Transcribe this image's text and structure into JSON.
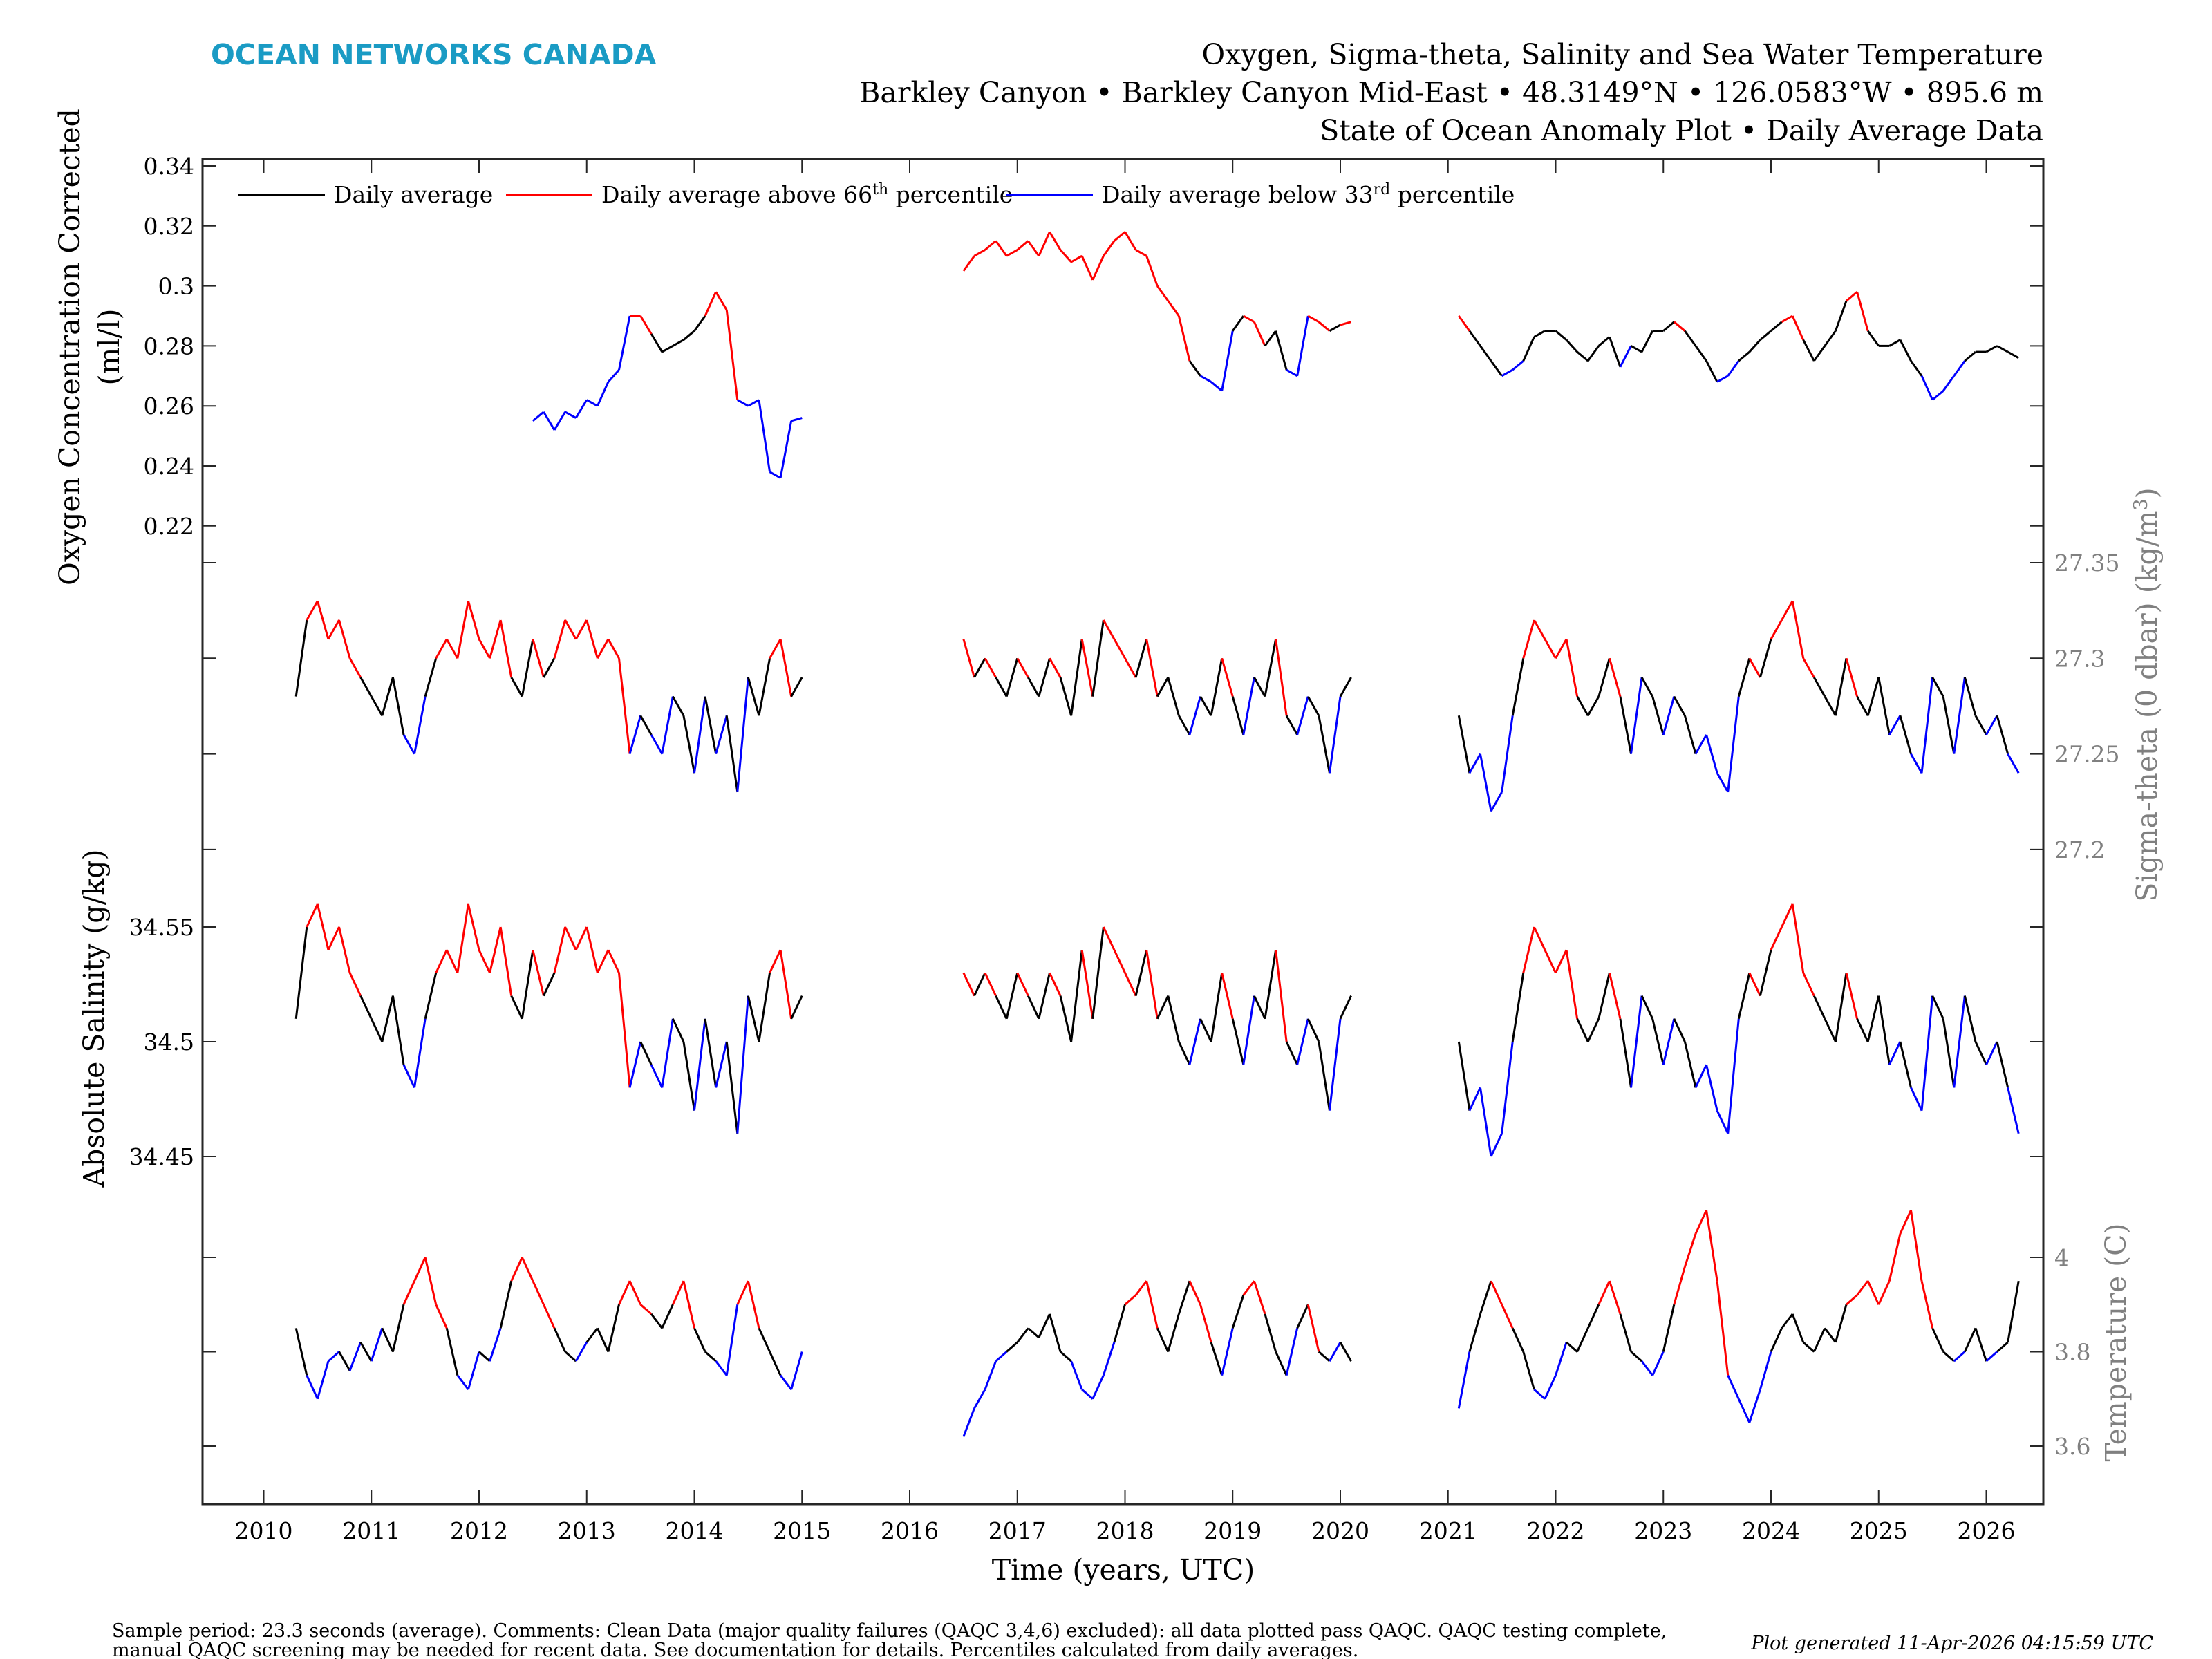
{
  "header": {
    "logo": "OCEAN NETWORKS CANADA",
    "title": "Oxygen, Sigma-theta, Salinity and Sea Water Temperature",
    "subtitle": "Barkley Canyon • Barkley Canyon Mid-East • 48.3149°N • 126.0583°W • 895.6 m",
    "subtitle2": "State of Ocean Anomaly Plot • Daily Average Data"
  },
  "footer": {
    "line1": "Sample period: 23.3 seconds (average). Comments: Clean Data (major quality failures (QAQC 3,4,6) excluded): all data plotted pass QAQC. QAQC testing complete,",
    "line2": "manual QAQC screening may be needed for recent data. See documentation for details. Percentiles calculated from daily averages.",
    "generated": "Plot generated 11-Apr-2026 04:15:59 UTC"
  },
  "colors": {
    "logo": "#1a9bc4",
    "normal": "#000000",
    "above": "#ff0000",
    "below": "#0000ff",
    "right_axis": "#808080"
  },
  "chart_data": {
    "type": "line",
    "xlabel": "Time (years, UTC)",
    "x_ticks": [
      2010,
      2011,
      2012,
      2013,
      2014,
      2015,
      2016,
      2017,
      2018,
      2019,
      2020,
      2021,
      2022,
      2023,
      2024,
      2025,
      2026
    ],
    "xlim": [
      2009.45,
      2026.55
    ],
    "legend": {
      "placement": "top-left",
      "entries": [
        {
          "text": "Daily average",
          "sup": "",
          "after": "",
          "color": "#000000"
        },
        {
          "text": "Daily average above 66",
          "sup": "th",
          "after": " percentile",
          "color": "#ff0000"
        },
        {
          "text": "Daily average below 33",
          "sup": "rd",
          "after": " percentile",
          "color": "#0000ff"
        }
      ]
    },
    "panels": [
      {
        "id": "oxygen",
        "side": "left",
        "ylabel_line1": "Oxygen Concentration Corrected",
        "ylabel_line2": "(ml/l)",
        "y_ticks": [
          "0.22",
          "0.24",
          "0.26",
          "0.28",
          "0.3",
          "0.32",
          "0.34"
        ],
        "segments": [
          {
            "x_start": 2012.5,
            "x_step": 0.1,
            "values": [
              0.255,
              0.258,
              0.252,
              0.258,
              0.256,
              0.262,
              0.26,
              0.268,
              0.272,
              0.29,
              0.29,
              0.284,
              0.278,
              0.28,
              0.282,
              0.285,
              0.29,
              0.298,
              0.292,
              0.262,
              0.26,
              0.262,
              0.238,
              0.236,
              0.255,
              0.256
            ]
          },
          {
            "x_start": 2016.5,
            "x_step": 0.1,
            "values": [
              0.305,
              0.31,
              0.312,
              0.315,
              0.31,
              0.312,
              0.315,
              0.31,
              0.318,
              0.312,
              0.308,
              0.31,
              0.302,
              0.31,
              0.315,
              0.318,
              0.312,
              0.31,
              0.3,
              0.295,
              0.29,
              0.275,
              0.27,
              0.268,
              0.265,
              0.285,
              0.29,
              0.288,
              0.28,
              0.285,
              0.272,
              0.27,
              0.29,
              0.288,
              0.285,
              0.287,
              0.288
            ]
          },
          {
            "x_start": 2021.1,
            "x_step": 0.1,
            "values": [
              0.29,
              0.285,
              0.28,
              0.275,
              0.27,
              0.272,
              0.275,
              0.283,
              0.285,
              0.285,
              0.282,
              0.278,
              0.275,
              0.28,
              0.283,
              0.273,
              0.28,
              0.278,
              0.285,
              0.285,
              0.288,
              0.285,
              0.28,
              0.275,
              0.268,
              0.27,
              0.275,
              0.278,
              0.282,
              0.285,
              0.288,
              0.29,
              0.282,
              0.275,
              0.28,
              0.285,
              0.295,
              0.298,
              0.285,
              0.28,
              0.28,
              0.282,
              0.275,
              0.27,
              0.262,
              0.265,
              0.27,
              0.275,
              0.278,
              0.278,
              0.28,
              0.278,
              0.276
            ]
          }
        ]
      },
      {
        "id": "sigma-theta",
        "side": "right",
        "ylabel": "Sigma-theta (0 dbar) (kg/m",
        "ylabel_sup": "3",
        "ylabel_end": ")",
        "y_ticks": [
          "27.2",
          "27.25",
          "27.3",
          "27.35"
        ],
        "segments": [
          {
            "x_start": 2010.3,
            "x_step": 0.1,
            "values": [
              27.28,
              27.32,
              27.33,
              27.31,
              27.32,
              27.3,
              27.29,
              27.28,
              27.27,
              27.29,
              27.26,
              27.25,
              27.28,
              27.3,
              27.31,
              27.3,
              27.33,
              27.31,
              27.3,
              27.32,
              27.29,
              27.28,
              27.31,
              27.29,
              27.3,
              27.32,
              27.31,
              27.32,
              27.3,
              27.31,
              27.3,
              27.25,
              27.27,
              27.26,
              27.25,
              27.28,
              27.27,
              27.24,
              27.28,
              27.25,
              27.27,
              27.23,
              27.29,
              27.27,
              27.3,
              27.31,
              27.28,
              27.29
            ]
          },
          {
            "x_start": 2016.5,
            "x_step": 0.1,
            "values": [
              27.31,
              27.29,
              27.3,
              27.29,
              27.28,
              27.3,
              27.29,
              27.28,
              27.3,
              27.29,
              27.27,
              27.31,
              27.28,
              27.32,
              27.31,
              27.3,
              27.29,
              27.31,
              27.28,
              27.29,
              27.27,
              27.26,
              27.28,
              27.27,
              27.3,
              27.28,
              27.26,
              27.29,
              27.28,
              27.31,
              27.27,
              27.26,
              27.28,
              27.27,
              27.24,
              27.28,
              27.29
            ]
          },
          {
            "x_start": 2021.1,
            "x_step": 0.1,
            "values": [
              27.27,
              27.24,
              27.25,
              27.22,
              27.23,
              27.27,
              27.3,
              27.32,
              27.31,
              27.3,
              27.31,
              27.28,
              27.27,
              27.28,
              27.3,
              27.28,
              27.25,
              27.29,
              27.28,
              27.26,
              27.28,
              27.27,
              27.25,
              27.26,
              27.24,
              27.23,
              27.28,
              27.3,
              27.29,
              27.31,
              27.32,
              27.33,
              27.3,
              27.29,
              27.28,
              27.27,
              27.3,
              27.28,
              27.27,
              27.29,
              27.26,
              27.27,
              27.25,
              27.24,
              27.29,
              27.28,
              27.25,
              27.29,
              27.27,
              27.26,
              27.27,
              27.25,
              27.24
            ]
          }
        ]
      },
      {
        "id": "salinity",
        "side": "left",
        "ylabel": "Absolute Salinity (g/kg)",
        "y_ticks": [
          "34.45",
          "34.5",
          "34.55"
        ],
        "segments": [
          {
            "x_start": 2010.3,
            "x_step": 0.1,
            "values": [
              34.51,
              34.55,
              34.56,
              34.54,
              34.55,
              34.53,
              34.52,
              34.51,
              34.5,
              34.52,
              34.49,
              34.48,
              34.51,
              34.53,
              34.54,
              34.53,
              34.56,
              34.54,
              34.53,
              34.55,
              34.52,
              34.51,
              34.54,
              34.52,
              34.53,
              34.55,
              34.54,
              34.55,
              34.53,
              34.54,
              34.53,
              34.48,
              34.5,
              34.49,
              34.48,
              34.51,
              34.5,
              34.47,
              34.51,
              34.48,
              34.5,
              34.46,
              34.52,
              34.5,
              34.53,
              34.54,
              34.51,
              34.52
            ]
          },
          {
            "x_start": 2016.5,
            "x_step": 0.1,
            "values": [
              34.53,
              34.52,
              34.53,
              34.52,
              34.51,
              34.53,
              34.52,
              34.51,
              34.53,
              34.52,
              34.5,
              34.54,
              34.51,
              34.55,
              34.54,
              34.53,
              34.52,
              34.54,
              34.51,
              34.52,
              34.5,
              34.49,
              34.51,
              34.5,
              34.53,
              34.51,
              34.49,
              34.52,
              34.51,
              34.54,
              34.5,
              34.49,
              34.51,
              34.5,
              34.47,
              34.51,
              34.52
            ]
          },
          {
            "x_start": 2021.1,
            "x_step": 0.1,
            "values": [
              34.5,
              34.47,
              34.48,
              34.45,
              34.46,
              34.5,
              34.53,
              34.55,
              34.54,
              34.53,
              34.54,
              34.51,
              34.5,
              34.51,
              34.53,
              34.51,
              34.48,
              34.52,
              34.51,
              34.49,
              34.51,
              34.5,
              34.48,
              34.49,
              34.47,
              34.46,
              34.51,
              34.53,
              34.52,
              34.54,
              34.55,
              34.56,
              34.53,
              34.52,
              34.51,
              34.5,
              34.53,
              34.51,
              34.5,
              34.52,
              34.49,
              34.5,
              34.48,
              34.47,
              34.52,
              34.51,
              34.48,
              34.52,
              34.5,
              34.49,
              34.5,
              34.48,
              34.46
            ]
          }
        ]
      },
      {
        "id": "temperature",
        "side": "right",
        "ylabel": "Temperature (C)",
        "y_ticks": [
          "3.6",
          "3.8",
          "4"
        ],
        "segments": [
          {
            "x_start": 2010.3,
            "x_step": 0.1,
            "values": [
              3.85,
              3.75,
              3.7,
              3.78,
              3.8,
              3.76,
              3.82,
              3.78,
              3.85,
              3.8,
              3.9,
              3.95,
              4.0,
              3.9,
              3.85,
              3.75,
              3.72,
              3.8,
              3.78,
              3.85,
              3.95,
              4.0,
              3.95,
              3.9,
              3.85,
              3.8,
              3.78,
              3.82,
              3.85,
              3.8,
              3.9,
              3.95,
              3.9,
              3.88,
              3.85,
              3.9,
              3.95,
              3.85,
              3.8,
              3.78,
              3.75,
              3.9,
              3.95,
              3.85,
              3.8,
              3.75,
              3.72,
              3.8
            ]
          },
          {
            "x_start": 2016.5,
            "x_step": 0.1,
            "values": [
              3.62,
              3.68,
              3.72,
              3.78,
              3.8,
              3.82,
              3.85,
              3.83,
              3.88,
              3.8,
              3.78,
              3.72,
              3.7,
              3.75,
              3.82,
              3.9,
              3.92,
              3.95,
              3.85,
              3.8,
              3.88,
              3.95,
              3.9,
              3.82,
              3.75,
              3.85,
              3.92,
              3.95,
              3.88,
              3.8,
              3.75,
              3.85,
              3.9,
              3.8,
              3.78,
              3.82,
              3.78
            ]
          },
          {
            "x_start": 2021.1,
            "x_step": 0.1,
            "values": [
              3.68,
              3.8,
              3.88,
              3.95,
              3.9,
              3.85,
              3.8,
              3.72,
              3.7,
              3.75,
              3.82,
              3.8,
              3.85,
              3.9,
              3.95,
              3.88,
              3.8,
              3.78,
              3.75,
              3.8,
              3.9,
              3.98,
              4.05,
              4.1,
              3.95,
              3.75,
              3.7,
              3.65,
              3.72,
              3.8,
              3.85,
              3.88,
              3.82,
              3.8,
              3.85,
              3.82,
              3.9,
              3.92,
              3.95,
              3.9,
              3.95,
              4.05,
              4.1,
              3.95,
              3.85,
              3.8,
              3.78,
              3.8,
              3.85,
              3.78,
              3.8,
              3.82,
              3.95
            ]
          }
        ]
      }
    ]
  }
}
